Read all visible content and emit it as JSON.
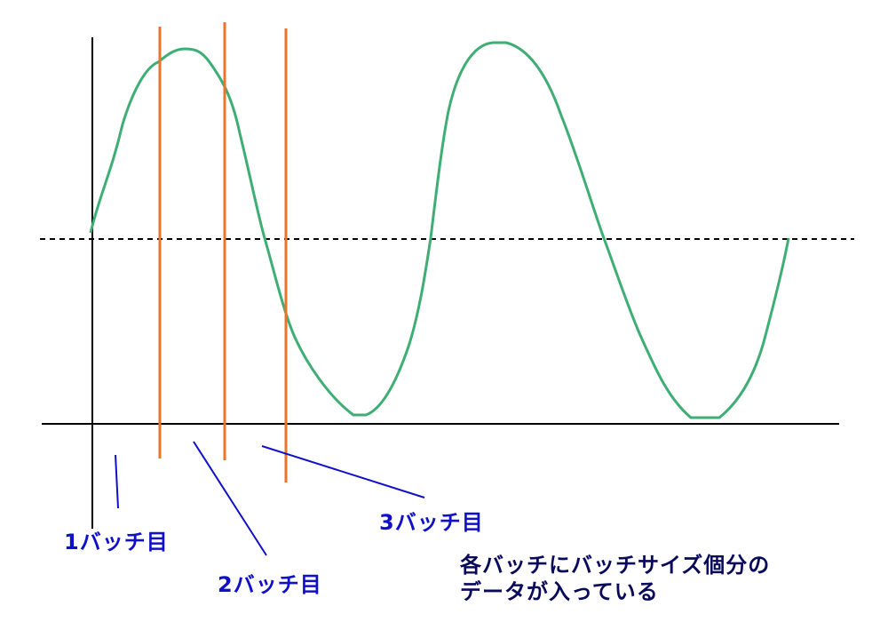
{
  "diagram": {
    "batch_labels": [
      "1バッチ目",
      "2バッチ目",
      "3バッチ目"
    ],
    "note_lines": [
      "各バッチにバッチサイズ個分の",
      "データが入っている"
    ]
  },
  "colors": {
    "wave": "#3fae74",
    "divider": "#e8742e",
    "axis": "#000000",
    "pointer": "#1010c8",
    "label_text": "#1010c8",
    "note_text": "#0a0a5a"
  }
}
